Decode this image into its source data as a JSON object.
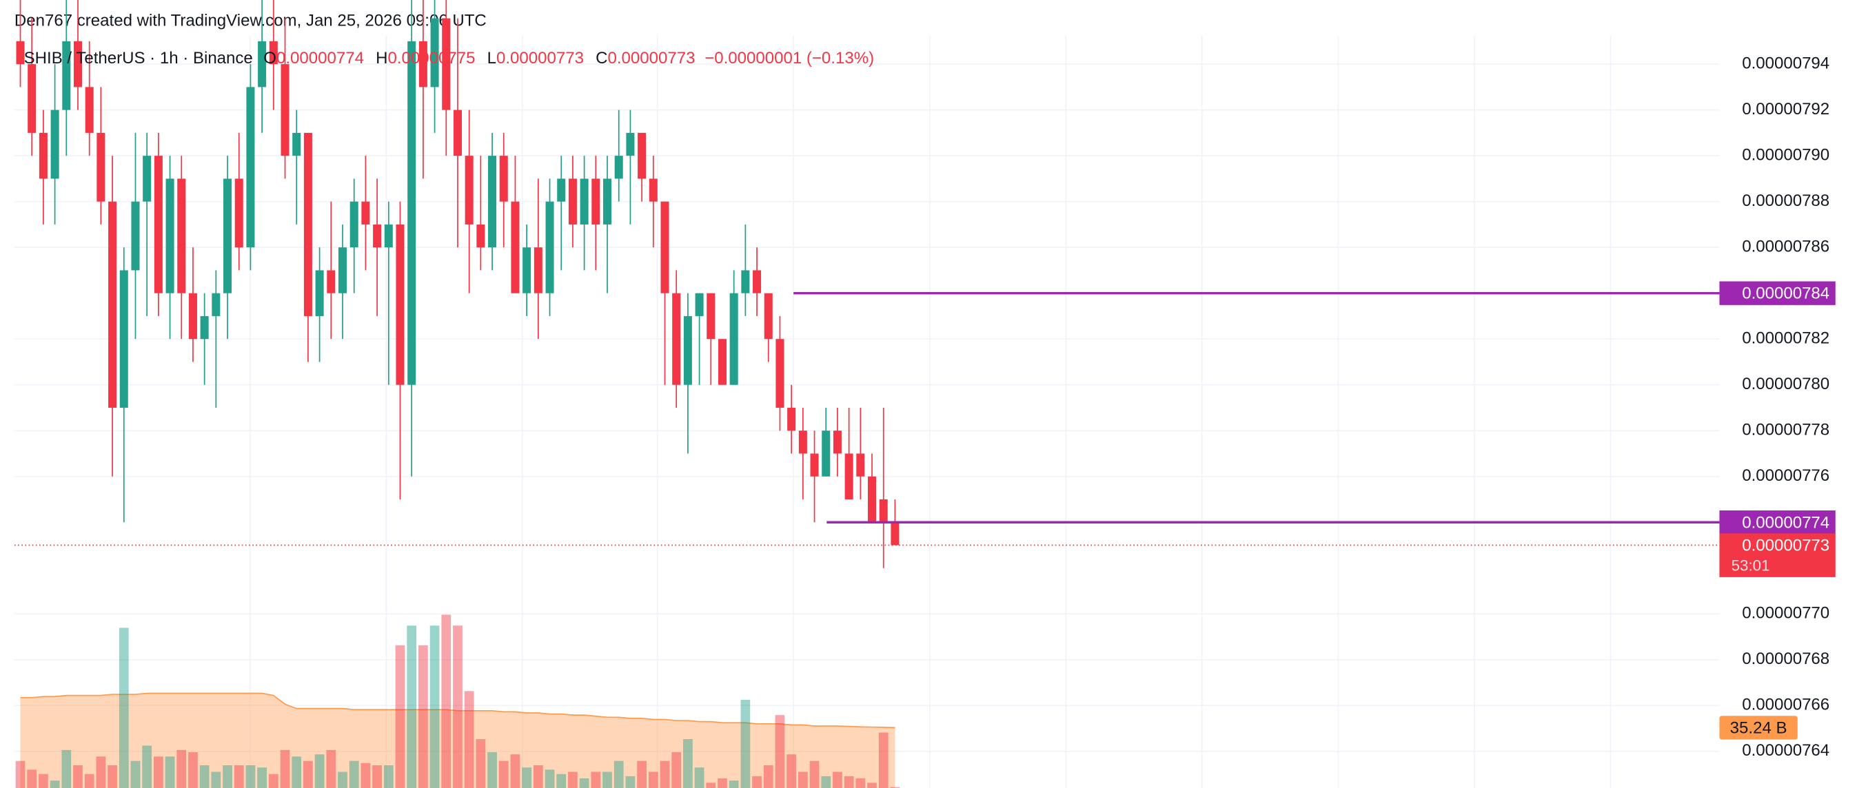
{
  "header": "Den767 created with TradingView.com, Jan 25, 2026 09:06 UTC",
  "chart_data": {
    "type": "candlestick",
    "legend": {
      "symbol": "SHIB / TetherUS · 1h · Binance",
      "items": [
        {
          "label": "O",
          "value": 7.74e-06
        },
        {
          "label": "H",
          "value": 7.75e-06
        },
        {
          "label": "L",
          "value": 7.73e-06
        },
        {
          "label": "C",
          "value": 7.73e-06
        }
      ],
      "change": "−0.00000001 (−0.13%)"
    },
    "open": [
      7.95e-06,
      7.94e-06,
      7.91e-06,
      7.89e-06,
      7.92e-06,
      7.95e-06,
      7.93e-06,
      7.91e-06,
      7.88e-06,
      7.79e-06,
      7.85e-06,
      7.88e-06,
      7.9e-06,
      7.84e-06,
      7.89e-06,
      7.84e-06,
      7.82e-06,
      7.83e-06,
      7.84e-06,
      7.89e-06,
      7.86e-06,
      7.93e-06,
      7.95e-06,
      7.94e-06,
      7.9e-06,
      7.91e-06,
      7.83e-06,
      7.85e-06,
      7.84e-06,
      7.86e-06,
      7.88e-06,
      7.87e-06,
      7.86e-06,
      7.87e-06,
      7.8e-06,
      7.95e-06,
      7.93e-06,
      7.96e-06,
      7.92e-06,
      7.9e-06,
      7.87e-06,
      7.86e-06,
      7.9e-06,
      7.88e-06,
      7.84e-06,
      7.86e-06,
      7.84e-06,
      7.88e-06,
      7.89e-06,
      7.87e-06,
      7.89e-06,
      7.87e-06,
      7.89e-06,
      7.9e-06,
      7.91e-06,
      7.89e-06,
      7.88e-06,
      7.84e-06,
      7.8e-06,
      7.83e-06,
      7.84e-06,
      7.82e-06,
      7.8e-06,
      7.84e-06,
      7.85e-06,
      7.84e-06,
      7.82e-06,
      7.79e-06,
      7.78e-06,
      7.77e-06,
      7.76e-06,
      7.78e-06,
      7.77e-06,
      7.77e-06,
      7.76e-06,
      7.75e-06,
      7.74e-06
    ],
    "high": [
      7.97e-06,
      7.96e-06,
      7.92e-06,
      7.94e-06,
      7.97e-06,
      7.97e-06,
      7.95e-06,
      7.93e-06,
      7.9e-06,
      7.86e-06,
      7.91e-06,
      7.91e-06,
      7.91e-06,
      7.9e-06,
      7.9e-06,
      7.86e-06,
      7.84e-06,
      7.85e-06,
      7.9e-06,
      7.91e-06,
      7.94e-06,
      7.97e-06,
      7.97e-06,
      7.96e-06,
      7.92e-06,
      7.91e-06,
      7.86e-06,
      7.88e-06,
      7.87e-06,
      7.89e-06,
      7.9e-06,
      7.89e-06,
      7.88e-06,
      7.88e-06,
      7.97e-06,
      7.97e-06,
      7.97e-06,
      7.97e-06,
      7.96e-06,
      7.92e-06,
      7.9e-06,
      7.91e-06,
      7.91e-06,
      7.9e-06,
      7.87e-06,
      7.89e-06,
      7.89e-06,
      7.9e-06,
      7.9e-06,
      7.9e-06,
      7.9e-06,
      7.9e-06,
      7.92e-06,
      7.92e-06,
      7.91e-06,
      7.9e-06,
      7.88e-06,
      7.85e-06,
      7.84e-06,
      7.84e-06,
      7.84e-06,
      7.82e-06,
      7.85e-06,
      7.87e-06,
      7.86e-06,
      7.84e-06,
      7.83e-06,
      7.8e-06,
      7.79e-06,
      7.78e-06,
      7.79e-06,
      7.79e-06,
      7.79e-06,
      7.79e-06,
      7.77e-06,
      7.79e-06,
      7.75e-06
    ],
    "low": [
      7.93e-06,
      7.9e-06,
      7.87e-06,
      7.87e-06,
      7.9e-06,
      7.92e-06,
      7.9e-06,
      7.87e-06,
      7.76e-06,
      7.74e-06,
      7.82e-06,
      7.83e-06,
      7.83e-06,
      7.82e-06,
      7.82e-06,
      7.81e-06,
      7.8e-06,
      7.79e-06,
      7.82e-06,
      7.85e-06,
      7.85e-06,
      7.91e-06,
      7.92e-06,
      7.89e-06,
      7.87e-06,
      7.81e-06,
      7.81e-06,
      7.82e-06,
      7.82e-06,
      7.84e-06,
      7.85e-06,
      7.83e-06,
      7.8e-06,
      7.75e-06,
      7.76e-06,
      7.89e-06,
      7.91e-06,
      7.9e-06,
      7.86e-06,
      7.84e-06,
      7.85e-06,
      7.85e-06,
      7.86e-06,
      7.84e-06,
      7.83e-06,
      7.82e-06,
      7.83e-06,
      7.85e-06,
      7.86e-06,
      7.85e-06,
      7.85e-06,
      7.84e-06,
      7.88e-06,
      7.87e-06,
      7.88e-06,
      7.86e-06,
      7.8e-06,
      7.79e-06,
      7.77e-06,
      7.8e-06,
      7.8e-06,
      7.8e-06,
      7.8e-06,
      7.83e-06,
      7.83e-06,
      7.81e-06,
      7.78e-06,
      7.77e-06,
      7.75e-06,
      7.74e-06,
      7.76e-06,
      7.76e-06,
      7.75e-06,
      7.75e-06,
      7.74e-06,
      7.72e-06,
      7.73e-06
    ],
    "close": [
      7.94e-06,
      7.91e-06,
      7.89e-06,
      7.92e-06,
      7.95e-06,
      7.93e-06,
      7.91e-06,
      7.88e-06,
      7.79e-06,
      7.85e-06,
      7.88e-06,
      7.9e-06,
      7.84e-06,
      7.89e-06,
      7.84e-06,
      7.82e-06,
      7.83e-06,
      7.84e-06,
      7.89e-06,
      7.86e-06,
      7.93e-06,
      7.95e-06,
      7.94e-06,
      7.9e-06,
      7.91e-06,
      7.83e-06,
      7.85e-06,
      7.84e-06,
      7.86e-06,
      7.88e-06,
      7.87e-06,
      7.86e-06,
      7.87e-06,
      7.8e-06,
      7.95e-06,
      7.93e-06,
      7.96e-06,
      7.92e-06,
      7.9e-06,
      7.87e-06,
      7.86e-06,
      7.9e-06,
      7.88e-06,
      7.84e-06,
      7.86e-06,
      7.84e-06,
      7.88e-06,
      7.89e-06,
      7.87e-06,
      7.89e-06,
      7.87e-06,
      7.89e-06,
      7.9e-06,
      7.91e-06,
      7.89e-06,
      7.88e-06,
      7.84e-06,
      7.8e-06,
      7.83e-06,
      7.84e-06,
      7.82e-06,
      7.8e-06,
      7.84e-06,
      7.85e-06,
      7.84e-06,
      7.82e-06,
      7.79e-06,
      7.78e-06,
      7.77e-06,
      7.76e-06,
      7.78e-06,
      7.77e-06,
      7.75e-06,
      7.76e-06,
      7.74e-06,
      7.74e-06,
      7.73e-06
    ],
    "volume": [
      20,
      16,
      14,
      11,
      25,
      18,
      14,
      22,
      18,
      81,
      20,
      27,
      22,
      22,
      25,
      24,
      18,
      15,
      18,
      18,
      18,
      17,
      14,
      25,
      22,
      20,
      23,
      25,
      15,
      20,
      19,
      18,
      18,
      73,
      82,
      73,
      82,
      87,
      82,
      52,
      30,
      24,
      20,
      23,
      17,
      18,
      16,
      14,
      15,
      12,
      15,
      15,
      20,
      13,
      20,
      15,
      20,
      24,
      30,
      17,
      10,
      12,
      11,
      48,
      13,
      18,
      41,
      23,
      15,
      20,
      13,
      15,
      13,
      12,
      10,
      33,
      8
    ],
    "volume_ma": [
      49,
      49,
      49.5,
      49.5,
      50,
      50,
      50,
      50,
      50.5,
      50.5,
      50.5,
      51,
      51,
      51,
      51,
      51,
      51,
      51,
      51,
      51,
      51,
      51,
      50,
      46,
      44,
      44,
      44,
      44,
      44,
      43.5,
      43.5,
      43.5,
      43.5,
      43.5,
      43.5,
      43.5,
      43.5,
      43.5,
      43,
      43,
      43,
      43,
      42.5,
      42.5,
      42,
      42,
      41.5,
      41.5,
      41,
      41,
      40.5,
      40,
      40,
      39.5,
      39.5,
      39,
      39,
      38.5,
      38.5,
      38,
      38,
      37.5,
      37.5,
      37.5,
      37,
      37,
      37,
      36.5,
      36.5,
      36,
      36,
      36,
      35.8,
      35.6,
      35.5,
      35.4,
      35.24
    ],
    "volume_ma_label": {
      "value": 35.24,
      "label": "35.24 B"
    },
    "vlim": [
      0,
      90
    ],
    "ylim": [
      7.624e-06,
      7.968e-06
    ],
    "yticks": [
      7.94e-06,
      7.92e-06,
      {
        "value": 7.9e-06,
        "label": "0.00000790"
      },
      7.88e-06,
      7.86e-06,
      7.82e-06,
      {
        "value": 7.8e-06,
        "label": "0.00000780"
      },
      7.78e-06,
      7.76e-06,
      {
        "value": 7.7e-06,
        "label": "0.00000770"
      },
      7.68e-06,
      7.66e-06,
      7.64e-06
    ],
    "lines": [
      {
        "price": 7.84e-06,
        "color": "#9c27b0"
      },
      {
        "price": 7.74e-06,
        "color": "#9c27b0"
      }
    ],
    "countdown": "53:01",
    "up_color": "#22a08c",
    "down_color": "#f23645",
    "ma_color": "#ff9a4d",
    "grid": true
  }
}
